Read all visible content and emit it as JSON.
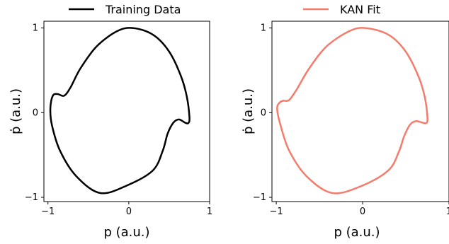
{
  "chart_data": [
    {
      "type": "line",
      "legend": {
        "label": "Training Data",
        "placement": "top"
      },
      "xlabel": "p (a.u.)",
      "ylabel": "ṗ (a.u.)",
      "xlim": [
        -1.05,
        1.0
      ],
      "ylim": [
        -1.05,
        1.08
      ],
      "xticks": [
        "−1",
        "0",
        "1"
      ],
      "yticks": [
        "−1",
        "0",
        "1"
      ],
      "grid": false,
      "color": "#000000",
      "series": [
        {
          "name": "Training Data",
          "x": [
            0.05,
            0.3,
            0.5,
            0.65,
            0.72,
            0.75,
            0.74,
            0.7,
            0.62,
            0.55,
            0.48,
            0.42,
            0.3,
            0.0,
            -0.35,
            -0.65,
            -0.85,
            -0.95,
            -0.97,
            -0.94,
            -0.88,
            -0.8,
            -0.72,
            -0.6,
            -0.4,
            -0.15,
            0.05
          ],
          "y": [
            1.0,
            0.92,
            0.72,
            0.42,
            0.18,
            -0.05,
            -0.12,
            -0.12,
            -0.08,
            -0.12,
            -0.25,
            -0.45,
            -0.68,
            -0.85,
            -0.95,
            -0.75,
            -0.45,
            -0.15,
            0.05,
            0.2,
            0.22,
            0.2,
            0.3,
            0.52,
            0.78,
            0.96,
            1.0
          ]
        }
      ]
    },
    {
      "type": "line",
      "legend": {
        "label": "KAN Fit",
        "placement": "top"
      },
      "xlabel": "p (a.u.)",
      "ylabel": "ṗ (a.u.)",
      "xlim": [
        -1.05,
        1.0
      ],
      "ylim": [
        -1.05,
        1.08
      ],
      "xticks": [
        "−1",
        "0",
        "1"
      ],
      "yticks": [
        "−1",
        "0",
        "1"
      ],
      "grid": false,
      "color": "#f47c6c",
      "series": [
        {
          "name": "KAN Fit",
          "x": [
            0.03,
            0.3,
            0.5,
            0.65,
            0.72,
            0.75,
            0.74,
            0.7,
            0.62,
            0.55,
            0.48,
            0.42,
            0.3,
            0.0,
            -0.35,
            -0.65,
            -0.85,
            -0.95,
            -0.99,
            -0.96,
            -0.92,
            -0.85,
            -0.76,
            -0.62,
            -0.42,
            -0.16,
            0.03
          ],
          "y": [
            1.0,
            0.92,
            0.72,
            0.42,
            0.18,
            -0.05,
            -0.12,
            -0.12,
            -0.1,
            -0.14,
            -0.28,
            -0.46,
            -0.68,
            -0.86,
            -0.95,
            -0.75,
            -0.45,
            -0.15,
            0.05,
            0.12,
            0.14,
            0.15,
            0.28,
            0.52,
            0.78,
            0.96,
            1.0
          ]
        }
      ]
    }
  ]
}
